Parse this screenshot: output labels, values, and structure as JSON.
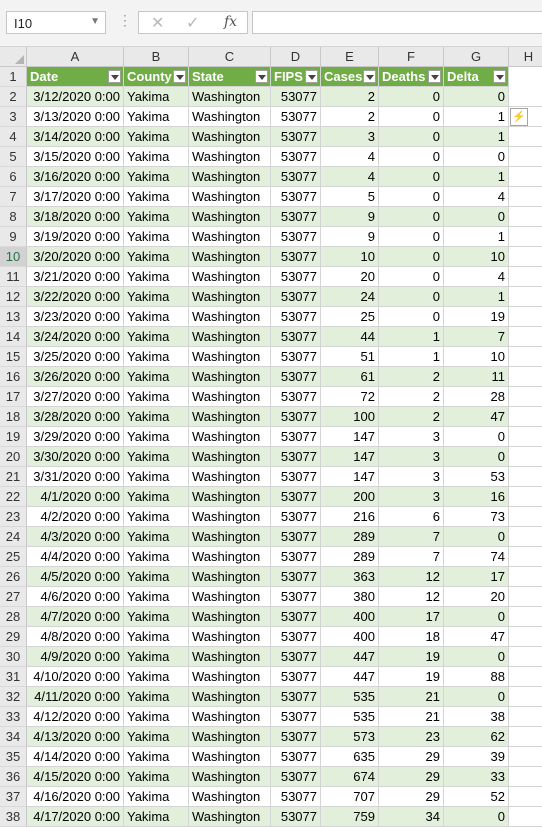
{
  "formula_bar": {
    "name_box": "I10",
    "formula": ""
  },
  "columns": [
    "A",
    "B",
    "C",
    "D",
    "E",
    "F",
    "G",
    "H"
  ],
  "headers": [
    "Date",
    "County",
    "State",
    "FIPS",
    "Cases",
    "Deaths",
    "Delta"
  ],
  "rows": [
    {
      "n": "2",
      "date": "3/12/2020 0:00",
      "county": "Yakima",
      "state": "Washington",
      "fips": "53077",
      "cases": "2",
      "deaths": "0",
      "delta": "0"
    },
    {
      "n": "3",
      "date": "3/13/2020 0:00",
      "county": "Yakima",
      "state": "Washington",
      "fips": "53077",
      "cases": "2",
      "deaths": "0",
      "delta": "1"
    },
    {
      "n": "4",
      "date": "3/14/2020 0:00",
      "county": "Yakima",
      "state": "Washington",
      "fips": "53077",
      "cases": "3",
      "deaths": "0",
      "delta": "1"
    },
    {
      "n": "5",
      "date": "3/15/2020 0:00",
      "county": "Yakima",
      "state": "Washington",
      "fips": "53077",
      "cases": "4",
      "deaths": "0",
      "delta": "0"
    },
    {
      "n": "6",
      "date": "3/16/2020 0:00",
      "county": "Yakima",
      "state": "Washington",
      "fips": "53077",
      "cases": "4",
      "deaths": "0",
      "delta": "1"
    },
    {
      "n": "7",
      "date": "3/17/2020 0:00",
      "county": "Yakima",
      "state": "Washington",
      "fips": "53077",
      "cases": "5",
      "deaths": "0",
      "delta": "4"
    },
    {
      "n": "8",
      "date": "3/18/2020 0:00",
      "county": "Yakima",
      "state": "Washington",
      "fips": "53077",
      "cases": "9",
      "deaths": "0",
      "delta": "0"
    },
    {
      "n": "9",
      "date": "3/19/2020 0:00",
      "county": "Yakima",
      "state": "Washington",
      "fips": "53077",
      "cases": "9",
      "deaths": "0",
      "delta": "1"
    },
    {
      "n": "10",
      "date": "3/20/2020 0:00",
      "county": "Yakima",
      "state": "Washington",
      "fips": "53077",
      "cases": "10",
      "deaths": "0",
      "delta": "10"
    },
    {
      "n": "11",
      "date": "3/21/2020 0:00",
      "county": "Yakima",
      "state": "Washington",
      "fips": "53077",
      "cases": "20",
      "deaths": "0",
      "delta": "4"
    },
    {
      "n": "12",
      "date": "3/22/2020 0:00",
      "county": "Yakima",
      "state": "Washington",
      "fips": "53077",
      "cases": "24",
      "deaths": "0",
      "delta": "1"
    },
    {
      "n": "13",
      "date": "3/23/2020 0:00",
      "county": "Yakima",
      "state": "Washington",
      "fips": "53077",
      "cases": "25",
      "deaths": "0",
      "delta": "19"
    },
    {
      "n": "14",
      "date": "3/24/2020 0:00",
      "county": "Yakima",
      "state": "Washington",
      "fips": "53077",
      "cases": "44",
      "deaths": "1",
      "delta": "7"
    },
    {
      "n": "15",
      "date": "3/25/2020 0:00",
      "county": "Yakima",
      "state": "Washington",
      "fips": "53077",
      "cases": "51",
      "deaths": "1",
      "delta": "10"
    },
    {
      "n": "16",
      "date": "3/26/2020 0:00",
      "county": "Yakima",
      "state": "Washington",
      "fips": "53077",
      "cases": "61",
      "deaths": "2",
      "delta": "11"
    },
    {
      "n": "17",
      "date": "3/27/2020 0:00",
      "county": "Yakima",
      "state": "Washington",
      "fips": "53077",
      "cases": "72",
      "deaths": "2",
      "delta": "28"
    },
    {
      "n": "18",
      "date": "3/28/2020 0:00",
      "county": "Yakima",
      "state": "Washington",
      "fips": "53077",
      "cases": "100",
      "deaths": "2",
      "delta": "47"
    },
    {
      "n": "19",
      "date": "3/29/2020 0:00",
      "county": "Yakima",
      "state": "Washington",
      "fips": "53077",
      "cases": "147",
      "deaths": "3",
      "delta": "0"
    },
    {
      "n": "20",
      "date": "3/30/2020 0:00",
      "county": "Yakima",
      "state": "Washington",
      "fips": "53077",
      "cases": "147",
      "deaths": "3",
      "delta": "0"
    },
    {
      "n": "21",
      "date": "3/31/2020 0:00",
      "county": "Yakima",
      "state": "Washington",
      "fips": "53077",
      "cases": "147",
      "deaths": "3",
      "delta": "53"
    },
    {
      "n": "22",
      "date": "4/1/2020 0:00",
      "county": "Yakima",
      "state": "Washington",
      "fips": "53077",
      "cases": "200",
      "deaths": "3",
      "delta": "16"
    },
    {
      "n": "23",
      "date": "4/2/2020 0:00",
      "county": "Yakima",
      "state": "Washington",
      "fips": "53077",
      "cases": "216",
      "deaths": "6",
      "delta": "73"
    },
    {
      "n": "24",
      "date": "4/3/2020 0:00",
      "county": "Yakima",
      "state": "Washington",
      "fips": "53077",
      "cases": "289",
      "deaths": "7",
      "delta": "0"
    },
    {
      "n": "25",
      "date": "4/4/2020 0:00",
      "county": "Yakima",
      "state": "Washington",
      "fips": "53077",
      "cases": "289",
      "deaths": "7",
      "delta": "74"
    },
    {
      "n": "26",
      "date": "4/5/2020 0:00",
      "county": "Yakima",
      "state": "Washington",
      "fips": "53077",
      "cases": "363",
      "deaths": "12",
      "delta": "17"
    },
    {
      "n": "27",
      "date": "4/6/2020 0:00",
      "county": "Yakima",
      "state": "Washington",
      "fips": "53077",
      "cases": "380",
      "deaths": "12",
      "delta": "20"
    },
    {
      "n": "28",
      "date": "4/7/2020 0:00",
      "county": "Yakima",
      "state": "Washington",
      "fips": "53077",
      "cases": "400",
      "deaths": "17",
      "delta": "0"
    },
    {
      "n": "29",
      "date": "4/8/2020 0:00",
      "county": "Yakima",
      "state": "Washington",
      "fips": "53077",
      "cases": "400",
      "deaths": "18",
      "delta": "47"
    },
    {
      "n": "30",
      "date": "4/9/2020 0:00",
      "county": "Yakima",
      "state": "Washington",
      "fips": "53077",
      "cases": "447",
      "deaths": "19",
      "delta": "0"
    },
    {
      "n": "31",
      "date": "4/10/2020 0:00",
      "county": "Yakima",
      "state": "Washington",
      "fips": "53077",
      "cases": "447",
      "deaths": "19",
      "delta": "88"
    },
    {
      "n": "32",
      "date": "4/11/2020 0:00",
      "county": "Yakima",
      "state": "Washington",
      "fips": "53077",
      "cases": "535",
      "deaths": "21",
      "delta": "0"
    },
    {
      "n": "33",
      "date": "4/12/2020 0:00",
      "county": "Yakima",
      "state": "Washington",
      "fips": "53077",
      "cases": "535",
      "deaths": "21",
      "delta": "38"
    },
    {
      "n": "34",
      "date": "4/13/2020 0:00",
      "county": "Yakima",
      "state": "Washington",
      "fips": "53077",
      "cases": "573",
      "deaths": "23",
      "delta": "62"
    },
    {
      "n": "35",
      "date": "4/14/2020 0:00",
      "county": "Yakima",
      "state": "Washington",
      "fips": "53077",
      "cases": "635",
      "deaths": "29",
      "delta": "39"
    },
    {
      "n": "36",
      "date": "4/15/2020 0:00",
      "county": "Yakima",
      "state": "Washington",
      "fips": "53077",
      "cases": "674",
      "deaths": "29",
      "delta": "33"
    },
    {
      "n": "37",
      "date": "4/16/2020 0:00",
      "county": "Yakima",
      "state": "Washington",
      "fips": "53077",
      "cases": "707",
      "deaths": "29",
      "delta": "52"
    },
    {
      "n": "38",
      "date": "4/17/2020 0:00",
      "county": "Yakima",
      "state": "Washington",
      "fips": "53077",
      "cases": "759",
      "deaths": "34",
      "delta": "0"
    }
  ],
  "colors": {
    "header_fill": "#70ad47",
    "band_fill": "#e2efda",
    "accent": "#217346"
  }
}
